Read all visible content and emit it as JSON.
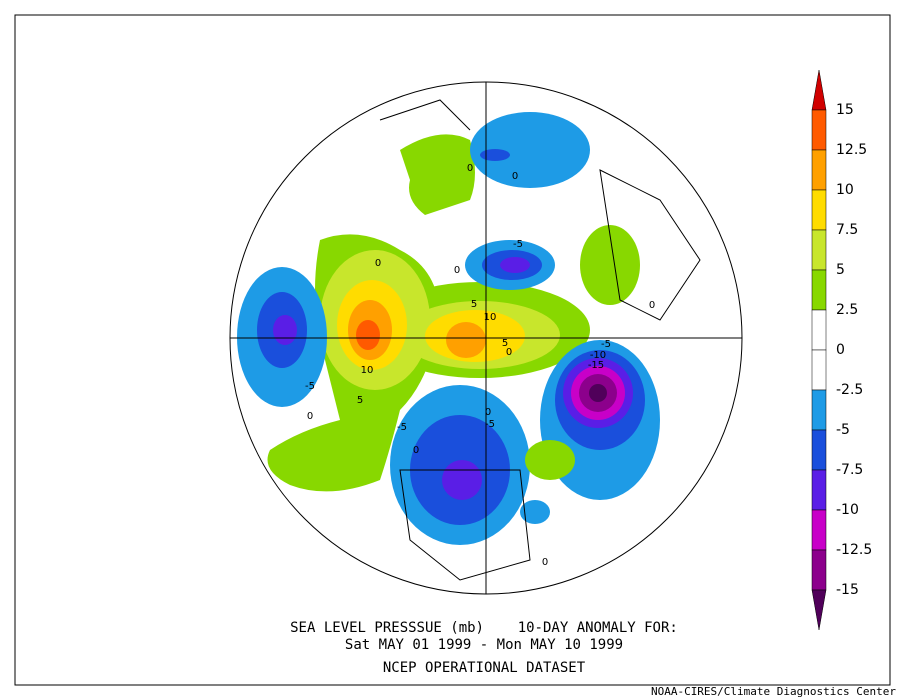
{
  "colorbar": {
    "labels": [
      "15",
      "12.5",
      "10",
      "7.5",
      "5",
      "2.5",
      "0",
      "-2.5",
      "-5",
      "-7.5",
      "-10",
      "-12.5",
      "-15"
    ],
    "colors": [
      "#d00000",
      "#ff5a00",
      "#ffa000",
      "#ffdc00",
      "#c8e62c",
      "#88d800",
      "#ffffff",
      "#ffffff",
      "#1e9be6",
      "#1a4fdc",
      "#5a1ee6",
      "#c800c8",
      "#8c008c",
      "#50005a"
    ]
  },
  "caption": {
    "line1": "SEA LEVEL PRESSSUE (mb)    10-DAY ANOMALY FOR:",
    "line2": "Sat MAY 01 1999 - Mon MAY 10 1999",
    "line3": "NCEP OPERATIONAL DATASET"
  },
  "credit": "NOAA-CIRES/Climate Diagnostics Center",
  "map_labels": [
    "0",
    "0",
    "-5",
    "0",
    "0",
    "5",
    "10",
    "5",
    "0",
    "-5",
    "-10",
    "-15",
    "10",
    "5",
    "-5",
    "0",
    "-5",
    "0",
    "-5",
    "0",
    "0",
    "0"
  ]
}
